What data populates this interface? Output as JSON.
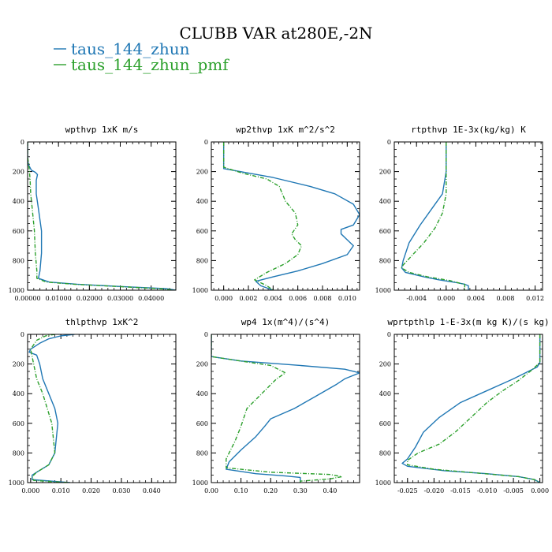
{
  "title": "CLUBB VAR at280E,-2N",
  "legend": [
    {
      "label": "taus_144_zhun",
      "color": "#1f77b4",
      "dash": "solid"
    },
    {
      "label": "taus_144_zhun_pmf",
      "color": "#2ca02c",
      "dash": "dashdot"
    }
  ],
  "chart_data": [
    {
      "type": "line",
      "title": "wpthvp  1xK m/s",
      "xlim": [
        0,
        0.048
      ],
      "ylim": [
        1000,
        0
      ],
      "xticks": [
        0,
        0.01,
        0.02,
        0.03,
        0.04
      ],
      "xticklabels": [
        "0.00000",
        "0.01000",
        "0.02000",
        "0.03000",
        "0.04000"
      ],
      "yticks": [
        0,
        200,
        400,
        600,
        800,
        1000
      ],
      "yticklabels": [
        "0",
        "200",
        "400",
        "600",
        "800",
        "1000"
      ],
      "series": [
        {
          "points": [
            [
              0.0,
              0
            ],
            [
              0.0,
              100
            ],
            [
              0.0002,
              150
            ],
            [
              0.0012,
              190
            ],
            [
              0.0025,
              205
            ],
            [
              0.0032,
              220
            ],
            [
              0.0028,
              260
            ],
            [
              0.0028,
              350
            ],
            [
              0.0035,
              450
            ],
            [
              0.0045,
              600
            ],
            [
              0.0045,
              750
            ],
            [
              0.004,
              870
            ],
            [
              0.0035,
              920
            ],
            [
              0.007,
              945
            ],
            [
              0.016,
              960
            ],
            [
              0.03,
              975
            ],
            [
              0.045,
              990
            ],
            [
              0.048,
              1000
            ]
          ]
        },
        {
          "points": [
            [
              0.0,
              0
            ],
            [
              0.0,
              100
            ],
            [
              0.0005,
              180
            ],
            [
              0.0008,
              250
            ],
            [
              0.001,
              350
            ],
            [
              0.0015,
              450
            ],
            [
              0.0022,
              600
            ],
            [
              0.0025,
              750
            ],
            [
              0.003,
              870
            ],
            [
              0.003,
              920
            ],
            [
              0.006,
              945
            ],
            [
              0.015,
              960
            ],
            [
              0.029,
              975
            ],
            [
              0.043,
              990
            ],
            [
              0.048,
              1000
            ]
          ]
        }
      ]
    },
    {
      "type": "line",
      "title": "wp2thvp  1xK m^2/s^2",
      "xlim": [
        -0.001,
        0.011
      ],
      "ylim": [
        1000,
        0
      ],
      "xticks": [
        0,
        0.002,
        0.004,
        0.006,
        0.008,
        0.01
      ],
      "xticklabels": [
        "0.000",
        "0.002",
        "0.004",
        "0.006",
        "0.008",
        "0.010"
      ],
      "yticks": [
        0,
        200,
        400,
        600,
        800,
        1000
      ],
      "yticklabels": [
        "0",
        "200",
        "400",
        "600",
        "800",
        "1000"
      ],
      "series": [
        {
          "points": [
            [
              0.0,
              0
            ],
            [
              0.0,
              100
            ],
            [
              0.0,
              180
            ],
            [
              0.002,
              210
            ],
            [
              0.004,
              240
            ],
            [
              0.007,
              300
            ],
            [
              0.009,
              350
            ],
            [
              0.0105,
              420
            ],
            [
              0.011,
              490
            ],
            [
              0.0105,
              560
            ],
            [
              0.0095,
              590
            ],
            [
              0.0095,
              620
            ],
            [
              0.01,
              660
            ],
            [
              0.0105,
              700
            ],
            [
              0.01,
              760
            ],
            [
              0.008,
              820
            ],
            [
              0.006,
              870
            ],
            [
              0.004,
              910
            ],
            [
              0.0026,
              940
            ],
            [
              0.003,
              970
            ],
            [
              0.004,
              1000
            ]
          ]
        },
        {
          "points": [
            [
              0.0,
              0
            ],
            [
              0.0,
              100
            ],
            [
              0.0,
              170
            ],
            [
              0.0015,
              210
            ],
            [
              0.0035,
              250
            ],
            [
              0.0045,
              300
            ],
            [
              0.005,
              400
            ],
            [
              0.0058,
              480
            ],
            [
              0.006,
              560
            ],
            [
              0.0055,
              620
            ],
            [
              0.0058,
              660
            ],
            [
              0.0063,
              700
            ],
            [
              0.006,
              760
            ],
            [
              0.005,
              820
            ],
            [
              0.0035,
              880
            ],
            [
              0.0025,
              930
            ],
            [
              0.003,
              950
            ],
            [
              0.0035,
              970
            ],
            [
              0.004,
              1000
            ]
          ]
        }
      ]
    },
    {
      "type": "line",
      "title": "rtpthvp  1E-3x(kg/kg) K",
      "xlim": [
        -0.007,
        0.013
      ],
      "ylim": [
        1000,
        0
      ],
      "xticks": [
        -0.004,
        0,
        0.004,
        0.008,
        0.012
      ],
      "xticklabels": [
        "-0.004",
        "0.000",
        "0.004",
        "0.008",
        "0.012"
      ],
      "yticks": [
        0,
        200,
        400,
        600,
        800,
        1000
      ],
      "yticklabels": [
        "0",
        "200",
        "400",
        "600",
        "800",
        "1000"
      ],
      "series": [
        {
          "points": [
            [
              0.0,
              0
            ],
            [
              0.0,
              100
            ],
            [
              0.0,
              200
            ],
            [
              -0.0005,
              350
            ],
            [
              -0.0015,
              420
            ],
            [
              -0.0035,
              560
            ],
            [
              -0.005,
              680
            ],
            [
              -0.0058,
              800
            ],
            [
              -0.006,
              850
            ],
            [
              -0.0055,
              880
            ],
            [
              -0.003,
              910
            ],
            [
              -0.001,
              930
            ],
            [
              0.0015,
              950
            ],
            [
              0.0025,
              960
            ],
            [
              0.003,
              970
            ],
            [
              0.003,
              1000
            ]
          ]
        },
        {
          "points": [
            [
              0.0,
              0
            ],
            [
              0.0,
              100
            ],
            [
              0.0,
              200
            ],
            [
              0.0,
              350
            ],
            [
              -0.0005,
              480
            ],
            [
              -0.0015,
              580
            ],
            [
              -0.003,
              680
            ],
            [
              -0.0045,
              760
            ],
            [
              -0.0058,
              830
            ],
            [
              -0.006,
              850
            ],
            [
              -0.005,
              880
            ],
            [
              -0.0025,
              910
            ],
            [
              0.0005,
              935
            ],
            [
              0.002,
              955
            ],
            [
              0.0025,
              960
            ],
            [
              0.0025,
              1000
            ]
          ]
        }
      ]
    },
    {
      "type": "line",
      "title": "thlpthvp  1xK^2",
      "xlim": [
        -0.001,
        0.048
      ],
      "ylim": [
        1000,
        0
      ],
      "xticks": [
        0,
        0.01,
        0.02,
        0.03,
        0.04
      ],
      "xticklabels": [
        "0.000",
        "0.010",
        "0.020",
        "0.030",
        "0.040"
      ],
      "yticks": [
        0,
        200,
        400,
        600,
        800,
        1000
      ],
      "yticklabels": [
        "0",
        "200",
        "400",
        "600",
        "800",
        "1000"
      ],
      "series": [
        {
          "points": [
            [
              0.0145,
              0
            ],
            [
              0.01,
              10
            ],
            [
              0.006,
              30
            ],
            [
              0.003,
              60
            ],
            [
              0.0,
              100
            ],
            [
              -0.0005,
              120
            ],
            [
              0.002,
              140
            ],
            [
              0.003,
              200
            ],
            [
              0.004,
              300
            ],
            [
              0.006,
              400
            ],
            [
              0.008,
              500
            ],
            [
              0.009,
              600
            ],
            [
              0.0085,
              700
            ],
            [
              0.008,
              800
            ],
            [
              0.006,
              880
            ],
            [
              0.002,
              930
            ],
            [
              0.0005,
              950
            ],
            [
              0.0005,
              980
            ],
            [
              0.01,
              995
            ],
            [
              0.013,
              1000
            ]
          ]
        },
        {
          "points": [
            [
              0.008,
              0
            ],
            [
              0.005,
              10
            ],
            [
              0.002,
              40
            ],
            [
              0.0,
              100
            ],
            [
              0.0005,
              150
            ],
            [
              0.001,
              200
            ],
            [
              0.002,
              300
            ],
            [
              0.004,
              400
            ],
            [
              0.0055,
              500
            ],
            [
              0.007,
              600
            ],
            [
              0.0075,
              700
            ],
            [
              0.008,
              800
            ],
            [
              0.006,
              880
            ],
            [
              0.002,
              930
            ],
            [
              0.0005,
              960
            ],
            [
              0.001,
              985
            ],
            [
              0.008,
              995
            ],
            [
              0.013,
              1000
            ]
          ]
        }
      ]
    },
    {
      "type": "line",
      "title": "wp4  1x(m^4)/(s^4)",
      "xlim": [
        0,
        0.5
      ],
      "ylim": [
        1000,
        0
      ],
      "xticks": [
        0,
        0.1,
        0.2,
        0.3,
        0.4
      ],
      "xticklabels": [
        "0.00",
        "0.10",
        "0.20",
        "0.30",
        "0.40"
      ],
      "yticks": [
        0,
        200,
        400,
        600,
        800,
        1000
      ],
      "yticklabels": [
        "0",
        "200",
        "400",
        "600",
        "800",
        "1000"
      ],
      "series": [
        {
          "points": [
            [
              0.0,
              0
            ],
            [
              0.0,
              100
            ],
            [
              0.0,
              150
            ],
            [
              0.1,
              180
            ],
            [
              0.3,
              210
            ],
            [
              0.45,
              235
            ],
            [
              0.5,
              260
            ],
            [
              0.45,
              300
            ],
            [
              0.42,
              340
            ],
            [
              0.35,
              420
            ],
            [
              0.28,
              500
            ],
            [
              0.2,
              570
            ],
            [
              0.18,
              620
            ],
            [
              0.15,
              690
            ],
            [
              0.1,
              780
            ],
            [
              0.06,
              860
            ],
            [
              0.05,
              910
            ],
            [
              0.15,
              940
            ],
            [
              0.25,
              955
            ],
            [
              0.3,
              965
            ],
            [
              0.3,
              1000
            ]
          ]
        },
        {
          "points": [
            [
              0.0,
              0
            ],
            [
              0.0,
              100
            ],
            [
              0.0,
              150
            ],
            [
              0.1,
              180
            ],
            [
              0.2,
              210
            ],
            [
              0.25,
              260
            ],
            [
              0.22,
              300
            ],
            [
              0.18,
              380
            ],
            [
              0.12,
              500
            ],
            [
              0.1,
              620
            ],
            [
              0.08,
              720
            ],
            [
              0.05,
              840
            ],
            [
              0.05,
              900
            ],
            [
              0.2,
              930
            ],
            [
              0.4,
              945
            ],
            [
              0.44,
              960
            ],
            [
              0.4,
              975
            ],
            [
              0.3,
              990
            ],
            [
              0.3,
              1000
            ]
          ]
        }
      ]
    },
    {
      "type": "line",
      "title": "wprtpthlp  1-E-3x(m kg K)/(s kg)",
      "xlim": [
        -0.0275,
        0.0005
      ],
      "ylim": [
        1000,
        0
      ],
      "xticks": [
        -0.025,
        -0.02,
        -0.015,
        -0.01,
        -0.005,
        0
      ],
      "xticklabels": [
        "-0.025",
        "-0.020",
        "-0.015",
        "-0.010",
        "-0.005",
        "0.000"
      ],
      "yticks": [
        0,
        200,
        400,
        600,
        800,
        1000
      ],
      "yticklabels": [
        "0",
        "200",
        "400",
        "600",
        "800",
        "1000"
      ],
      "series": [
        {
          "points": [
            [
              0.0,
              0
            ],
            [
              0.0,
              100
            ],
            [
              0.0,
              190
            ],
            [
              -0.0005,
              220
            ],
            [
              -0.005,
              300
            ],
            [
              -0.01,
              380
            ],
            [
              -0.015,
              460
            ],
            [
              -0.019,
              560
            ],
            [
              -0.022,
              660
            ],
            [
              -0.0235,
              760
            ],
            [
              -0.025,
              840
            ],
            [
              -0.026,
              870
            ],
            [
              -0.025,
              890
            ],
            [
              -0.018,
              920
            ],
            [
              -0.01,
              940
            ],
            [
              -0.004,
              960
            ],
            [
              -0.001,
              980
            ],
            [
              0.0,
              1000
            ]
          ]
        },
        {
          "points": [
            [
              0.0,
              0
            ],
            [
              0.0,
              100
            ],
            [
              0.0,
              190
            ],
            [
              -0.0015,
              240
            ],
            [
              -0.004,
              310
            ],
            [
              -0.007,
              380
            ],
            [
              -0.01,
              460
            ],
            [
              -0.013,
              560
            ],
            [
              -0.016,
              660
            ],
            [
              -0.019,
              740
            ],
            [
              -0.023,
              800
            ],
            [
              -0.025,
              850
            ],
            [
              -0.025,
              880
            ],
            [
              -0.02,
              910
            ],
            [
              -0.012,
              935
            ],
            [
              -0.004,
              960
            ],
            [
              -0.001,
              980
            ],
            [
              0.0,
              1000
            ]
          ]
        }
      ]
    }
  ]
}
